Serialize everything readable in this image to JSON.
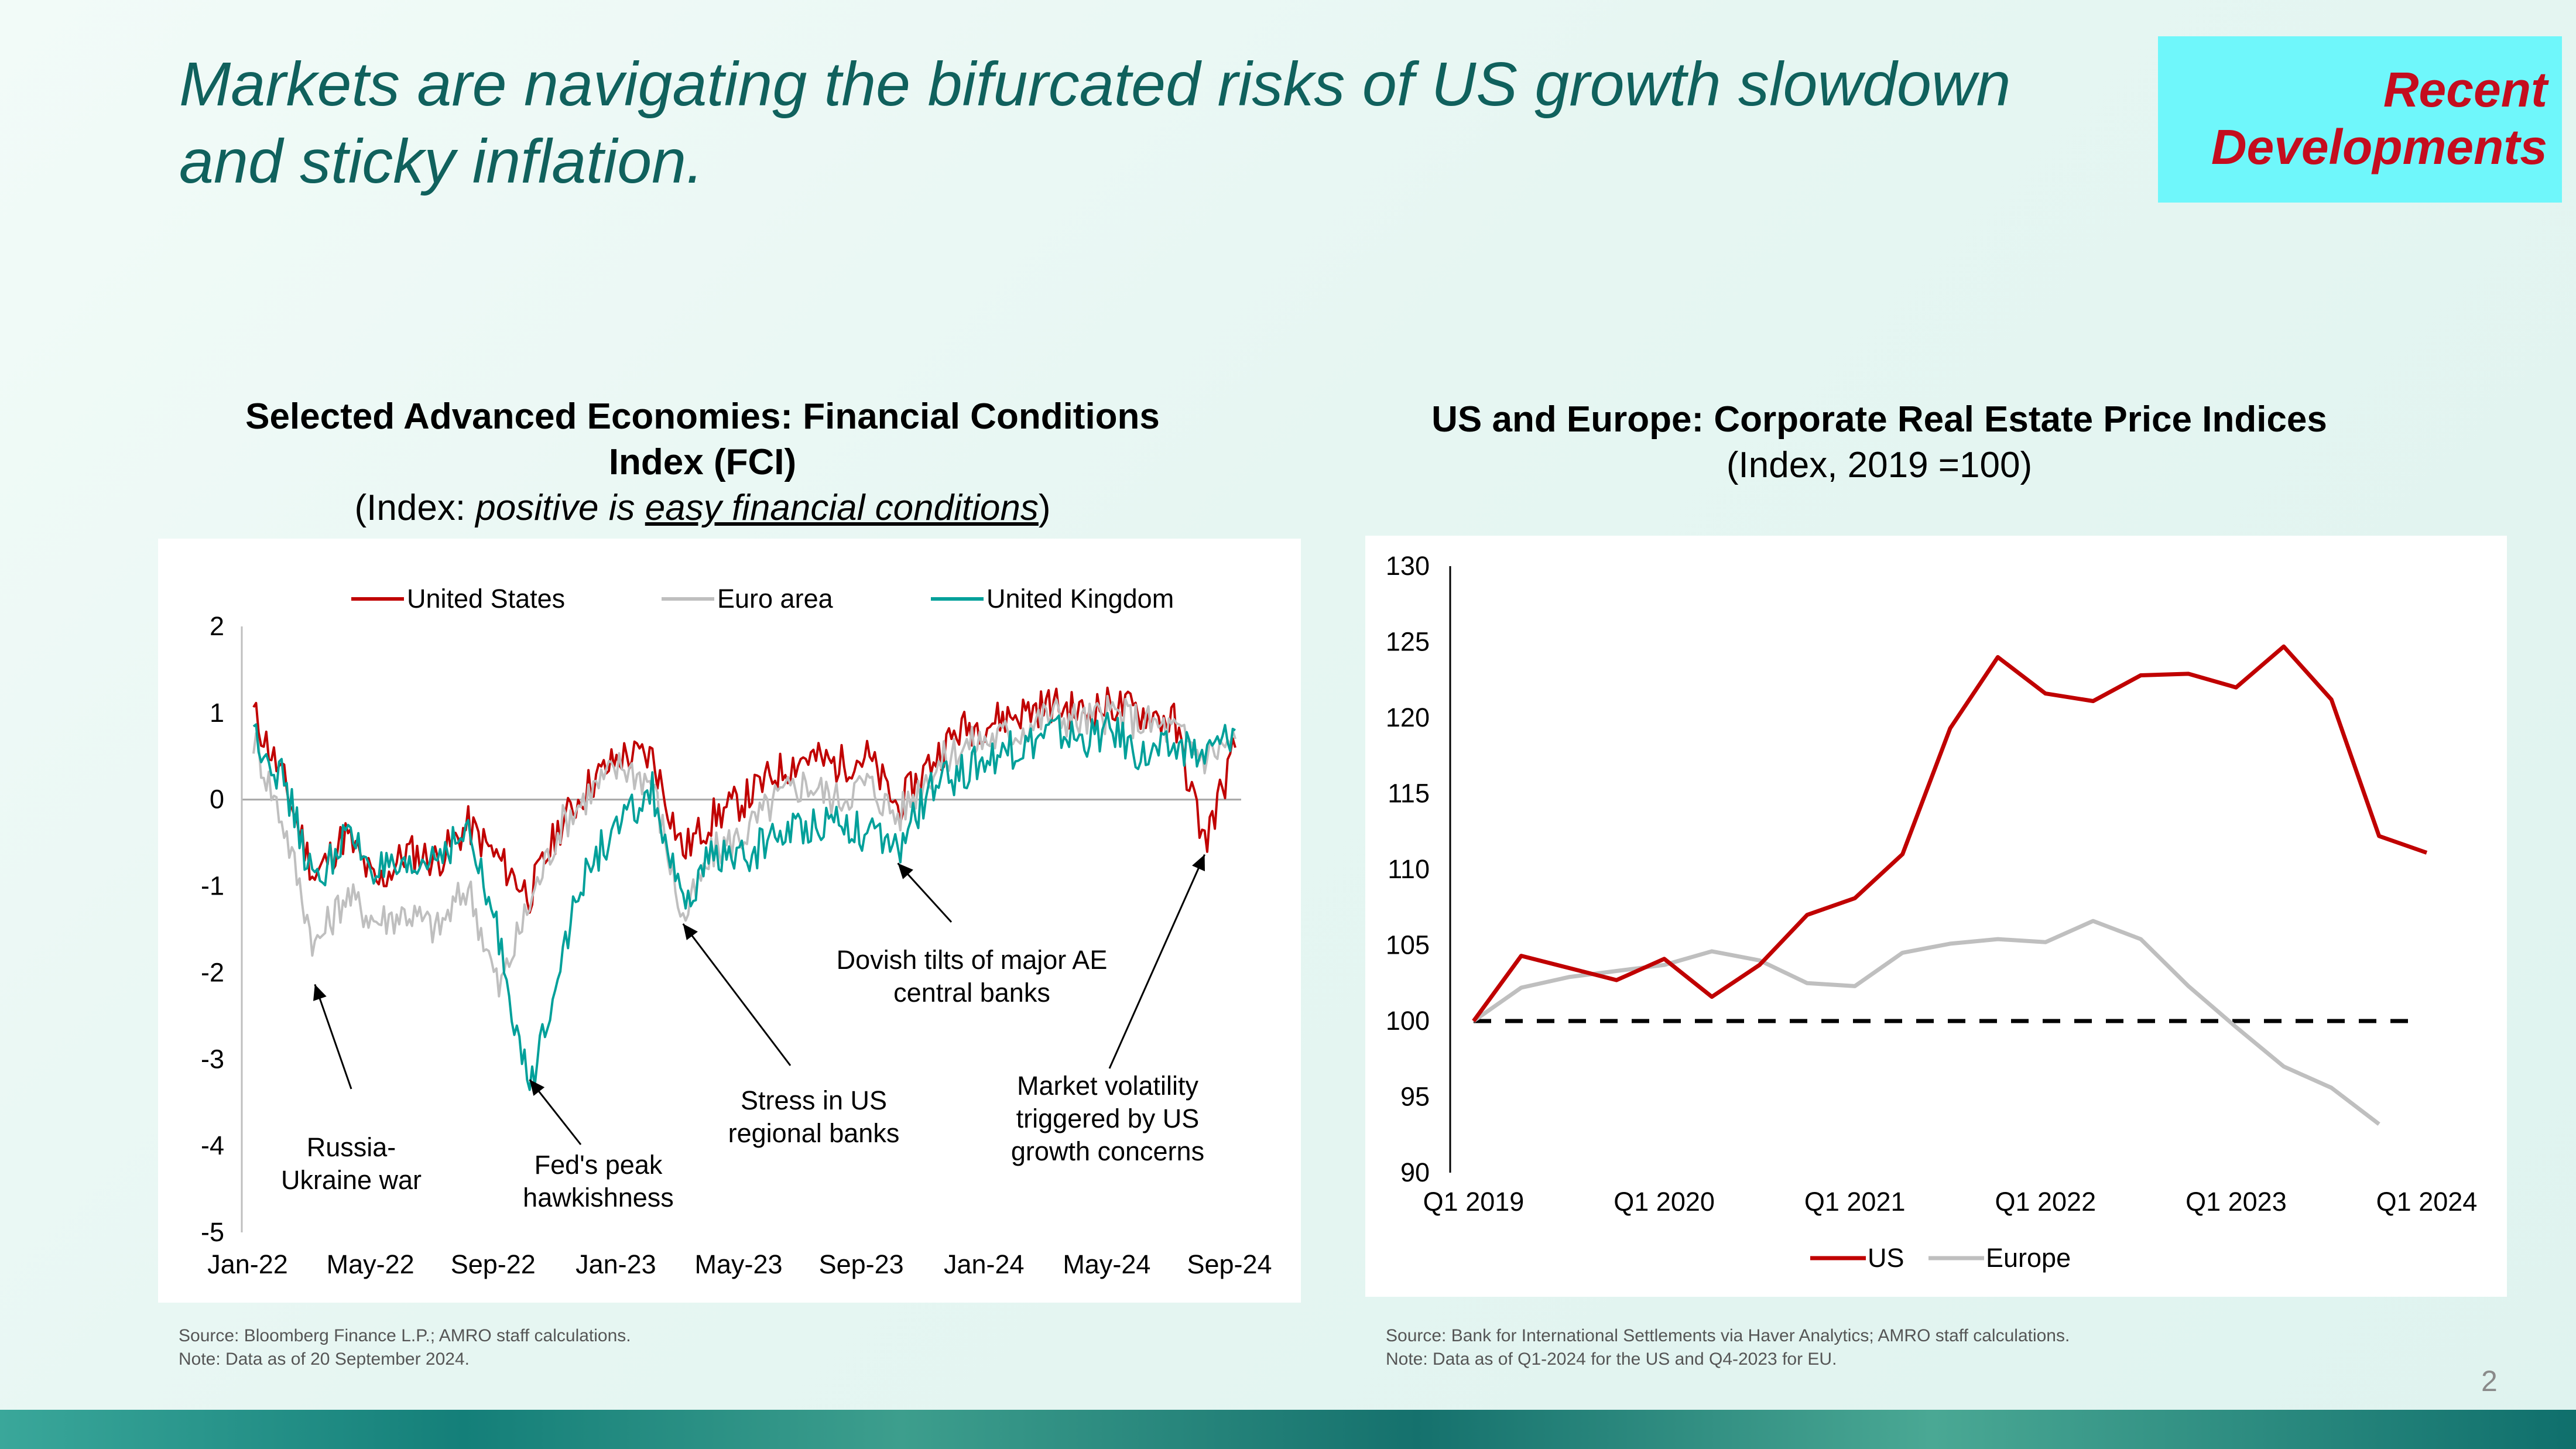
{
  "slide": {
    "title_line1": "Markets are navigating the bifurcated risks of US growth slowdown",
    "title_line2": "and sticky inflation.",
    "badge_line1": "Recent",
    "badge_line2": "Developments",
    "page_number": "2"
  },
  "left": {
    "heading_line1": "Selected Advanced Economies: Financial Conditions",
    "heading_line2": "Index (FCI)",
    "subtitle_prefix": "(Index: ",
    "subtitle_italic": "positive is ",
    "subtitle_underline": "easy financial conditions",
    "subtitle_suffix": ")",
    "source": "Source: Bloomberg Finance L.P.; AMRO staff calculations.",
    "note": "Note: Data as of 20 September 2024."
  },
  "right": {
    "heading": "US and Europe: Corporate Real Estate Price Indices",
    "subtitle": "(Index, 2019 =100)",
    "source": "Source: Bank for International Settlements via Haver Analytics; AMRO staff calculations.",
    "note": "Note: Data as of Q1-2024 for the US and Q4-2023 for EU."
  },
  "colors": {
    "us": "#c00000",
    "euro": "#bfbfbf",
    "uk": "#00a09a",
    "europe": "#bfbfbf",
    "baseline": "#000000",
    "title": "#10615d",
    "badge_bg": "#6ff7fb",
    "badge_text": "#c40d1e"
  },
  "chart_data": [
    {
      "type": "line",
      "ylim": [
        -5,
        2
      ],
      "yticks": [
        2,
        1,
        0,
        -1,
        -2,
        -3,
        -4,
        -5
      ],
      "xticks": [
        "Jan-22",
        "May-22",
        "Sep-22",
        "Jan-23",
        "May-23",
        "Sep-23",
        "Jan-24",
        "May-24",
        "Sep-24"
      ],
      "legend_position": "top",
      "series": [
        {
          "name": "United States",
          "color_key": "us",
          "months": [
            "Jan-22",
            "Feb-22",
            "Mar-22",
            "Apr-22",
            "May-22",
            "Jun-22",
            "Jul-22",
            "Aug-22",
            "Sep-22",
            "Oct-22",
            "Nov-22",
            "Dec-22",
            "Jan-23",
            "Feb-23",
            "Mar-23",
            "Apr-23",
            "May-23",
            "Jun-23",
            "Jul-23",
            "Aug-23",
            "Sep-23",
            "Oct-23",
            "Nov-23",
            "Dec-23",
            "Jan-24",
            "Feb-24",
            "Mar-24",
            "Apr-24",
            "May-24",
            "Jun-24",
            "Jul-24",
            "Aug-24",
            "Sep-24"
          ],
          "values": [
            1.0,
            0.2,
            -0.9,
            -0.4,
            -1.0,
            -0.6,
            -0.7,
            -0.3,
            -0.7,
            -1.1,
            -0.3,
            0.2,
            0.5,
            0.5,
            -0.6,
            -0.2,
            0.0,
            0.3,
            0.5,
            0.4,
            0.5,
            -0.1,
            0.4,
            0.8,
            0.9,
            1.0,
            1.1,
            1.0,
            1.1,
            1.0,
            0.9,
            -0.5,
            0.6
          ]
        },
        {
          "name": "Euro area",
          "color_key": "euro",
          "months": [
            "Jan-22",
            "Feb-22",
            "Mar-22",
            "Apr-22",
            "May-22",
            "Jun-22",
            "Jul-22",
            "Aug-22",
            "Sep-22",
            "Oct-22",
            "Nov-22",
            "Dec-22",
            "Jan-23",
            "Feb-23",
            "Mar-23",
            "Apr-23",
            "May-23",
            "Jun-23",
            "Jul-23",
            "Aug-23",
            "Sep-23",
            "Oct-23",
            "Nov-23",
            "Dec-23",
            "Jan-24",
            "Feb-24",
            "Mar-24",
            "Apr-24",
            "May-24",
            "Jun-24",
            "Jul-24",
            "Aug-24",
            "Sep-24"
          ],
          "values": [
            0.7,
            -0.3,
            -1.7,
            -1.1,
            -1.4,
            -1.3,
            -1.5,
            -1.0,
            -2.2,
            -1.2,
            -0.3,
            0.1,
            0.4,
            0.2,
            -1.4,
            -0.6,
            -0.4,
            0.0,
            0.2,
            0.0,
            0.2,
            -0.2,
            0.3,
            0.6,
            0.7,
            0.8,
            1.0,
            0.9,
            1.0,
            0.9,
            0.8,
            0.5,
            0.7
          ]
        },
        {
          "name": "United Kingdom",
          "color_key": "uk",
          "months": [
            "Jan-22",
            "Feb-22",
            "Mar-22",
            "Apr-22",
            "May-22",
            "Jun-22",
            "Jul-22",
            "Aug-22",
            "Sep-22",
            "Oct-22",
            "Nov-22",
            "Dec-22",
            "Jan-23",
            "Feb-23",
            "Mar-23",
            "Apr-23",
            "May-23",
            "Jun-23",
            "Jul-23",
            "Aug-23",
            "Sep-23",
            "Oct-23",
            "Nov-23",
            "Dec-23",
            "Jan-24",
            "Feb-24",
            "Mar-24",
            "Apr-24",
            "May-24",
            "Jun-24",
            "Jul-24",
            "Aug-24",
            "Sep-24"
          ],
          "values": [
            0.8,
            0.2,
            -1.0,
            -0.4,
            -0.8,
            -0.9,
            -0.6,
            -0.4,
            -1.6,
            -3.4,
            -1.8,
            -0.7,
            -0.3,
            0.1,
            -1.3,
            -0.6,
            -0.7,
            -0.4,
            -0.3,
            -0.2,
            -0.4,
            -0.6,
            0.1,
            0.3,
            0.5,
            0.6,
            0.8,
            0.7,
            0.8,
            0.5,
            0.6,
            0.5,
            0.8
          ]
        }
      ],
      "annotations": [
        {
          "lines": [
            "Russia-",
            "Ukraine war"
          ],
          "month": "Mar-22",
          "value": -2.0
        },
        {
          "lines": [
            "Fed's peak",
            "hawkishness"
          ],
          "month": "Oct-22",
          "value": -3.1
        },
        {
          "lines": [
            "Stress in US",
            "regional banks"
          ],
          "month": "Mar-23",
          "value": -1.3
        },
        {
          "lines": [
            "Dovish tilts of major AE",
            "central banks"
          ],
          "month": "Oct-23",
          "value": -0.6
        },
        {
          "lines": [
            "Market volatility",
            "triggered by US",
            "growth concerns"
          ],
          "month": "Aug-24",
          "value": -0.5
        }
      ]
    },
    {
      "type": "line",
      "ylim": [
        90,
        130
      ],
      "yticks": [
        130,
        125,
        120,
        115,
        110,
        105,
        100,
        95,
        90
      ],
      "xticks": [
        "Q1 2019",
        "Q1 2020",
        "Q1 2021",
        "Q1 2022",
        "Q1 2023",
        "Q1 2024"
      ],
      "quarters": [
        "Q1 2019",
        "Q2 2019",
        "Q3 2019",
        "Q4 2019",
        "Q1 2020",
        "Q2 2020",
        "Q3 2020",
        "Q4 2020",
        "Q1 2021",
        "Q2 2021",
        "Q3 2021",
        "Q4 2021",
        "Q1 2022",
        "Q2 2022",
        "Q3 2022",
        "Q4 2022",
        "Q1 2023",
        "Q2 2023",
        "Q3 2023",
        "Q4 2023",
        "Q1 2024"
      ],
      "legend_position": "bottom",
      "baseline": 100,
      "series": [
        {
          "name": "US",
          "color_key": "us",
          "values": [
            100.0,
            104.3,
            103.5,
            102.7,
            104.1,
            101.6,
            103.7,
            107.0,
            108.1,
            111.0,
            119.3,
            124.0,
            121.6,
            121.1,
            122.8,
            122.9,
            122.0,
            124.7,
            121.2,
            112.2,
            111.1
          ]
        },
        {
          "name": "Europe",
          "color_key": "europe",
          "values": [
            100.0,
            102.2,
            102.9,
            103.3,
            103.7,
            104.6,
            104.0,
            102.5,
            102.3,
            104.5,
            105.1,
            105.4,
            105.2,
            106.6,
            105.4,
            102.3,
            99.6,
            97.0,
            95.6,
            93.2
          ]
        }
      ]
    }
  ]
}
